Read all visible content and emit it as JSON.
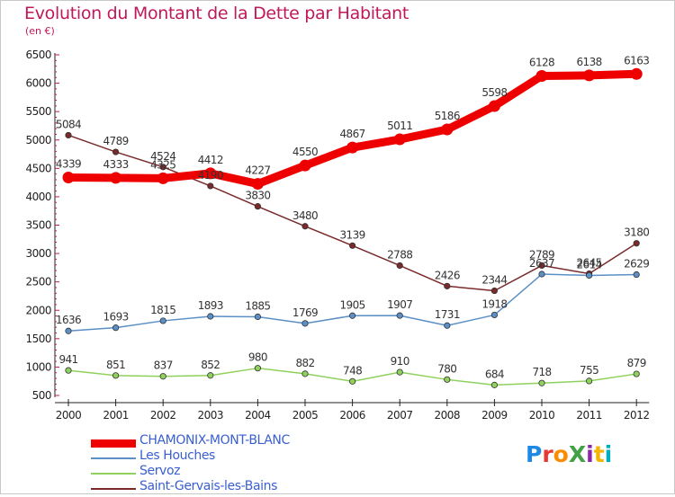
{
  "title": "Evolution du Montant de la Dette par Habitant",
  "unit": "(en €)",
  "logo": {
    "text": "ProXiti",
    "colors": [
      "#1e88e5",
      "#e53935",
      "#fb8c00",
      "#43a047",
      "#8e24aa",
      "#f4b400",
      "#00acc1"
    ]
  },
  "chart_data": {
    "type": "line",
    "title": "Evolution du Montant de la Dette par Habitant",
    "ylabel": "(en €)",
    "xlabel": "",
    "x": [
      "2000",
      "2001",
      "2002",
      "2003",
      "2004",
      "2005",
      "2006",
      "2007",
      "2008",
      "2009",
      "2010",
      "2011",
      "2012"
    ],
    "ylim": [
      500,
      6500
    ],
    "yticks": [
      500,
      1000,
      1500,
      2000,
      2500,
      3000,
      3500,
      4000,
      4500,
      5000,
      5500,
      6000,
      6500
    ],
    "grid": false,
    "legend_position": "bottom-left",
    "series": [
      {
        "name": "CHAMONIX-MONT-BLANC",
        "color": "#ee0000",
        "width": "thick",
        "values": [
          4339,
          4333,
          4325,
          4412,
          4227,
          4550,
          4867,
          5011,
          5186,
          5598,
          6128,
          6138,
          6163
        ]
      },
      {
        "name": "Les Houches",
        "color": "#5b8fc6",
        "width": "thin",
        "values": [
          1636,
          1693,
          1815,
          1893,
          1885,
          1769,
          1905,
          1907,
          1731,
          1918,
          2637,
          2614,
          2629
        ]
      },
      {
        "name": "Servoz",
        "color": "#8fd15c",
        "width": "thin",
        "values": [
          941,
          851,
          837,
          852,
          980,
          882,
          748,
          910,
          780,
          684,
          718,
          755,
          879
        ]
      },
      {
        "name": "Saint-Gervais-les-Bains",
        "color": "#7a2a2a",
        "width": "thin",
        "values": [
          5084,
          4789,
          4524,
          4190,
          3830,
          3480,
          3139,
          2788,
          2426,
          2344,
          2789,
          2645,
          3180
        ]
      }
    ]
  }
}
